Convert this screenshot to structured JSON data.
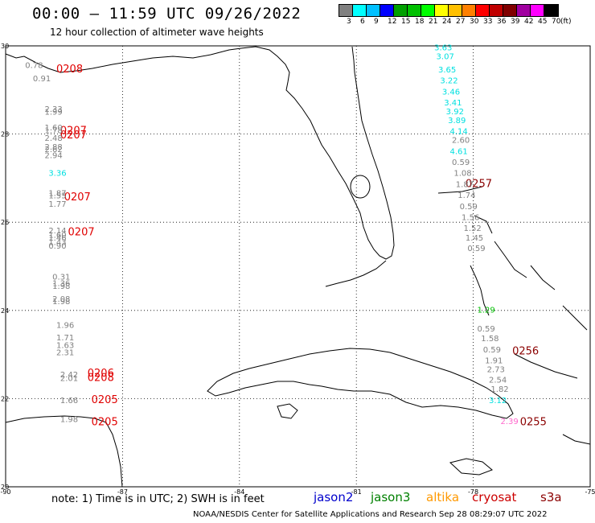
{
  "header": {
    "title": "00:00 – 11:59 UTC 09/26/2022",
    "subtitle": "12 hour collection of altimeter wave heights"
  },
  "colorbar": {
    "unit": "(ft)",
    "bins": [
      {
        "label": "3",
        "color": "#808080"
      },
      {
        "label": "6",
        "color": "#00ffff"
      },
      {
        "label": "9",
        "color": "#00c0ff"
      },
      {
        "label": "12",
        "color": "#0000ff"
      },
      {
        "label": "15",
        "color": "#00a000"
      },
      {
        "label": "18",
        "color": "#00c000"
      },
      {
        "label": "21",
        "color": "#00ff00"
      },
      {
        "label": "24",
        "color": "#ffff00"
      },
      {
        "label": "27",
        "color": "#ffc000"
      },
      {
        "label": "30",
        "color": "#ff8000"
      },
      {
        "label": "33",
        "color": "#ff0000"
      },
      {
        "label": "36",
        "color": "#c00000"
      },
      {
        "label": "39",
        "color": "#800000"
      },
      {
        "label": "42",
        "color": "#a000a0"
      },
      {
        "label": "45",
        "color": "#ff00ff"
      },
      {
        "label": "70",
        "color": "#000000"
      }
    ]
  },
  "map": {
    "lon_range": [
      -90,
      -75
    ],
    "lat_range": [
      20,
      30
    ],
    "lon_ticks": [
      "-90",
      "-87",
      "-84",
      "-81",
      "-78",
      "-75"
    ],
    "lat_ticks": [
      "30",
      "28",
      "26",
      "24",
      "22",
      "20"
    ],
    "grid": true,
    "tracks": [
      {
        "label": "0208",
        "lon": -88.7,
        "lat": 29.4,
        "color": "#e00000"
      },
      {
        "label": "0207",
        "lon": -88.6,
        "lat": 28.0,
        "color": "#e00000"
      },
      {
        "label": "0207",
        "lon": -88.6,
        "lat": 27.9,
        "color": "#e00000"
      },
      {
        "label": "0207",
        "lon": -88.5,
        "lat": 26.5,
        "color": "#e00000"
      },
      {
        "label": "0207",
        "lon": -88.4,
        "lat": 25.7,
        "color": "#e00000"
      },
      {
        "label": "0206",
        "lon": -87.9,
        "lat": 22.5,
        "color": "#e00000"
      },
      {
        "label": "0208",
        "lon": -87.9,
        "lat": 22.4,
        "color": "#e00000"
      },
      {
        "label": "0205",
        "lon": -87.8,
        "lat": 21.9,
        "color": "#e00000"
      },
      {
        "label": "0205",
        "lon": -87.8,
        "lat": 21.4,
        "color": "#e00000"
      },
      {
        "label": "0257",
        "lon": -78.2,
        "lat": 26.8,
        "color": "#8b0000"
      },
      {
        "label": "0256",
        "lon": -77.0,
        "lat": 23.0,
        "color": "#8b0000"
      },
      {
        "label": "0255",
        "lon": -76.8,
        "lat": 21.4,
        "color": "#8b0000"
      }
    ],
    "observations": [
      {
        "value": "0.78",
        "lon": -89.5,
        "lat": 29.5,
        "color": "#808080"
      },
      {
        "value": "0.91",
        "lon": -89.3,
        "lat": 29.2,
        "color": "#808080"
      },
      {
        "value": "2.33",
        "lon": -89.0,
        "lat": 28.5,
        "color": "#808080"
      },
      {
        "value": "1.99",
        "lon": -89.0,
        "lat": 28.44,
        "color": "#808080"
      },
      {
        "value": "1.60",
        "lon": -89.0,
        "lat": 28.08,
        "color": "#808080"
      },
      {
        "value": "1.78",
        "lon": -89.0,
        "lat": 28.02,
        "color": "#808080"
      },
      {
        "value": "2.48",
        "lon": -89.0,
        "lat": 27.85,
        "color": "#808080"
      },
      {
        "value": "2.88",
        "lon": -89.0,
        "lat": 27.65,
        "color": "#808080"
      },
      {
        "value": "2.62",
        "lon": -89.0,
        "lat": 27.59,
        "color": "#808080"
      },
      {
        "value": "2.94",
        "lon": -89.0,
        "lat": 27.45,
        "color": "#808080"
      },
      {
        "value": "3.36",
        "lon": -88.9,
        "lat": 27.05,
        "color": "#00e0e0"
      },
      {
        "value": "1.87",
        "lon": -88.9,
        "lat": 26.6,
        "color": "#808080"
      },
      {
        "value": "1.55",
        "lon": -88.9,
        "lat": 26.54,
        "color": "#808080"
      },
      {
        "value": "1.77",
        "lon": -88.9,
        "lat": 26.35,
        "color": "#808080"
      },
      {
        "value": "2.14",
        "lon": -88.9,
        "lat": 25.75,
        "color": "#808080"
      },
      {
        "value": "1.60",
        "lon": -88.9,
        "lat": 25.65,
        "color": "#808080"
      },
      {
        "value": "1.46",
        "lon": -88.9,
        "lat": 25.58,
        "color": "#808080"
      },
      {
        "value": "1.43",
        "lon": -88.9,
        "lat": 25.48,
        "color": "#808080"
      },
      {
        "value": "0.90",
        "lon": -88.9,
        "lat": 25.4,
        "color": "#808080"
      },
      {
        "value": "0.31",
        "lon": -88.8,
        "lat": 24.7,
        "color": "#808080"
      },
      {
        "value": "1.36",
        "lon": -88.8,
        "lat": 24.55,
        "color": "#808080"
      },
      {
        "value": "1.98",
        "lon": -88.8,
        "lat": 24.49,
        "color": "#808080"
      },
      {
        "value": "2.08",
        "lon": -88.8,
        "lat": 24.2,
        "color": "#808080"
      },
      {
        "value": "1.98",
        "lon": -88.8,
        "lat": 24.14,
        "color": "#808080"
      },
      {
        "value": "1.96",
        "lon": -88.7,
        "lat": 23.6,
        "color": "#808080"
      },
      {
        "value": "1.71",
        "lon": -88.7,
        "lat": 23.32,
        "color": "#808080"
      },
      {
        "value": "1.63",
        "lon": -88.7,
        "lat": 23.15,
        "color": "#808080"
      },
      {
        "value": "2.31",
        "lon": -88.7,
        "lat": 22.98,
        "color": "#808080"
      },
      {
        "value": "2.42",
        "lon": -88.6,
        "lat": 22.48,
        "color": "#808080"
      },
      {
        "value": "2.01",
        "lon": -88.6,
        "lat": 22.4,
        "color": "#808080"
      },
      {
        "value": "1.66",
        "lon": -88.6,
        "lat": 21.9,
        "color": "#808080"
      },
      {
        "value": "1.98",
        "lon": -88.6,
        "lat": 21.47,
        "color": "#808080"
      },
      {
        "value": "3.63",
        "lon": -79.0,
        "lat": 29.9,
        "color": "#00e0e0"
      },
      {
        "value": "3.07",
        "lon": -78.95,
        "lat": 29.7,
        "color": "#00e0e0"
      },
      {
        "value": "3.65",
        "lon": -78.9,
        "lat": 29.4,
        "color": "#00e0e0"
      },
      {
        "value": "3.22",
        "lon": -78.85,
        "lat": 29.15,
        "color": "#00e0e0"
      },
      {
        "value": "3.46",
        "lon": -78.8,
        "lat": 28.9,
        "color": "#00e0e0"
      },
      {
        "value": "3.41",
        "lon": -78.75,
        "lat": 28.65,
        "color": "#00e0e0"
      },
      {
        "value": "3.92",
        "lon": -78.7,
        "lat": 28.45,
        "color": "#00e0e0"
      },
      {
        "value": "3.89",
        "lon": -78.65,
        "lat": 28.25,
        "color": "#00e0e0"
      },
      {
        "value": "4.14",
        "lon": -78.6,
        "lat": 28.0,
        "color": "#00e0e0"
      },
      {
        "value": "2.60",
        "lon": -78.55,
        "lat": 27.8,
        "color": "#808080"
      },
      {
        "value": "4.61",
        "lon": -78.6,
        "lat": 27.55,
        "color": "#00e0e0"
      },
      {
        "value": "0.59",
        "lon": -78.55,
        "lat": 27.3,
        "color": "#808080"
      },
      {
        "value": "1.08",
        "lon": -78.5,
        "lat": 27.05,
        "color": "#808080"
      },
      {
        "value": "1.87",
        "lon": -78.45,
        "lat": 26.8,
        "color": "#808080"
      },
      {
        "value": "1.74",
        "lon": -78.4,
        "lat": 26.55,
        "color": "#808080"
      },
      {
        "value": "0.59",
        "lon": -78.35,
        "lat": 26.3,
        "color": "#808080"
      },
      {
        "value": "1.56",
        "lon": -78.3,
        "lat": 26.05,
        "color": "#808080"
      },
      {
        "value": "1.52",
        "lon": -78.25,
        "lat": 25.8,
        "color": "#808080"
      },
      {
        "value": "1.45",
        "lon": -78.2,
        "lat": 25.58,
        "color": "#808080"
      },
      {
        "value": "0.59",
        "lon": -78.15,
        "lat": 25.35,
        "color": "#808080"
      },
      {
        "value": "1.29",
        "lon": -77.9,
        "lat": 23.95,
        "color": "#00c000"
      },
      {
        "value": "0.59",
        "lon": -77.9,
        "lat": 23.52,
        "color": "#808080"
      },
      {
        "value": "1.58",
        "lon": -77.8,
        "lat": 23.3,
        "color": "#808080"
      },
      {
        "value": "0.59",
        "lon": -77.75,
        "lat": 23.05,
        "color": "#808080"
      },
      {
        "value": "1.91",
        "lon": -77.7,
        "lat": 22.8,
        "color": "#808080"
      },
      {
        "value": "2.73",
        "lon": -77.65,
        "lat": 22.6,
        "color": "#808080"
      },
      {
        "value": "2.54",
        "lon": -77.6,
        "lat": 22.36,
        "color": "#808080"
      },
      {
        "value": "1.82",
        "lon": -77.55,
        "lat": 22.15,
        "color": "#808080"
      },
      {
        "value": "3.12",
        "lon": -77.6,
        "lat": 21.9,
        "color": "#00e0e0"
      },
      {
        "value": "2.39",
        "lon": -77.3,
        "lat": 21.42,
        "color": "#ff66cc"
      }
    ]
  },
  "legend": {
    "note": "note: 1) Time is in UTC; 2) SWH is in feet",
    "satellites": [
      {
        "name": "jason2",
        "color": "#0000cc"
      },
      {
        "name": "jason3",
        "color": "#008000"
      },
      {
        "name": "altika",
        "color": "#ff9900"
      },
      {
        "name": "cryosat",
        "color": "#cc0000"
      },
      {
        "name": "s3a",
        "color": "#8b0000"
      }
    ]
  },
  "footer": {
    "credit": "NOAA/NESDIS Center for Satellite Applications and Research   Sep 28 08:29:07 UTC 2022"
  }
}
